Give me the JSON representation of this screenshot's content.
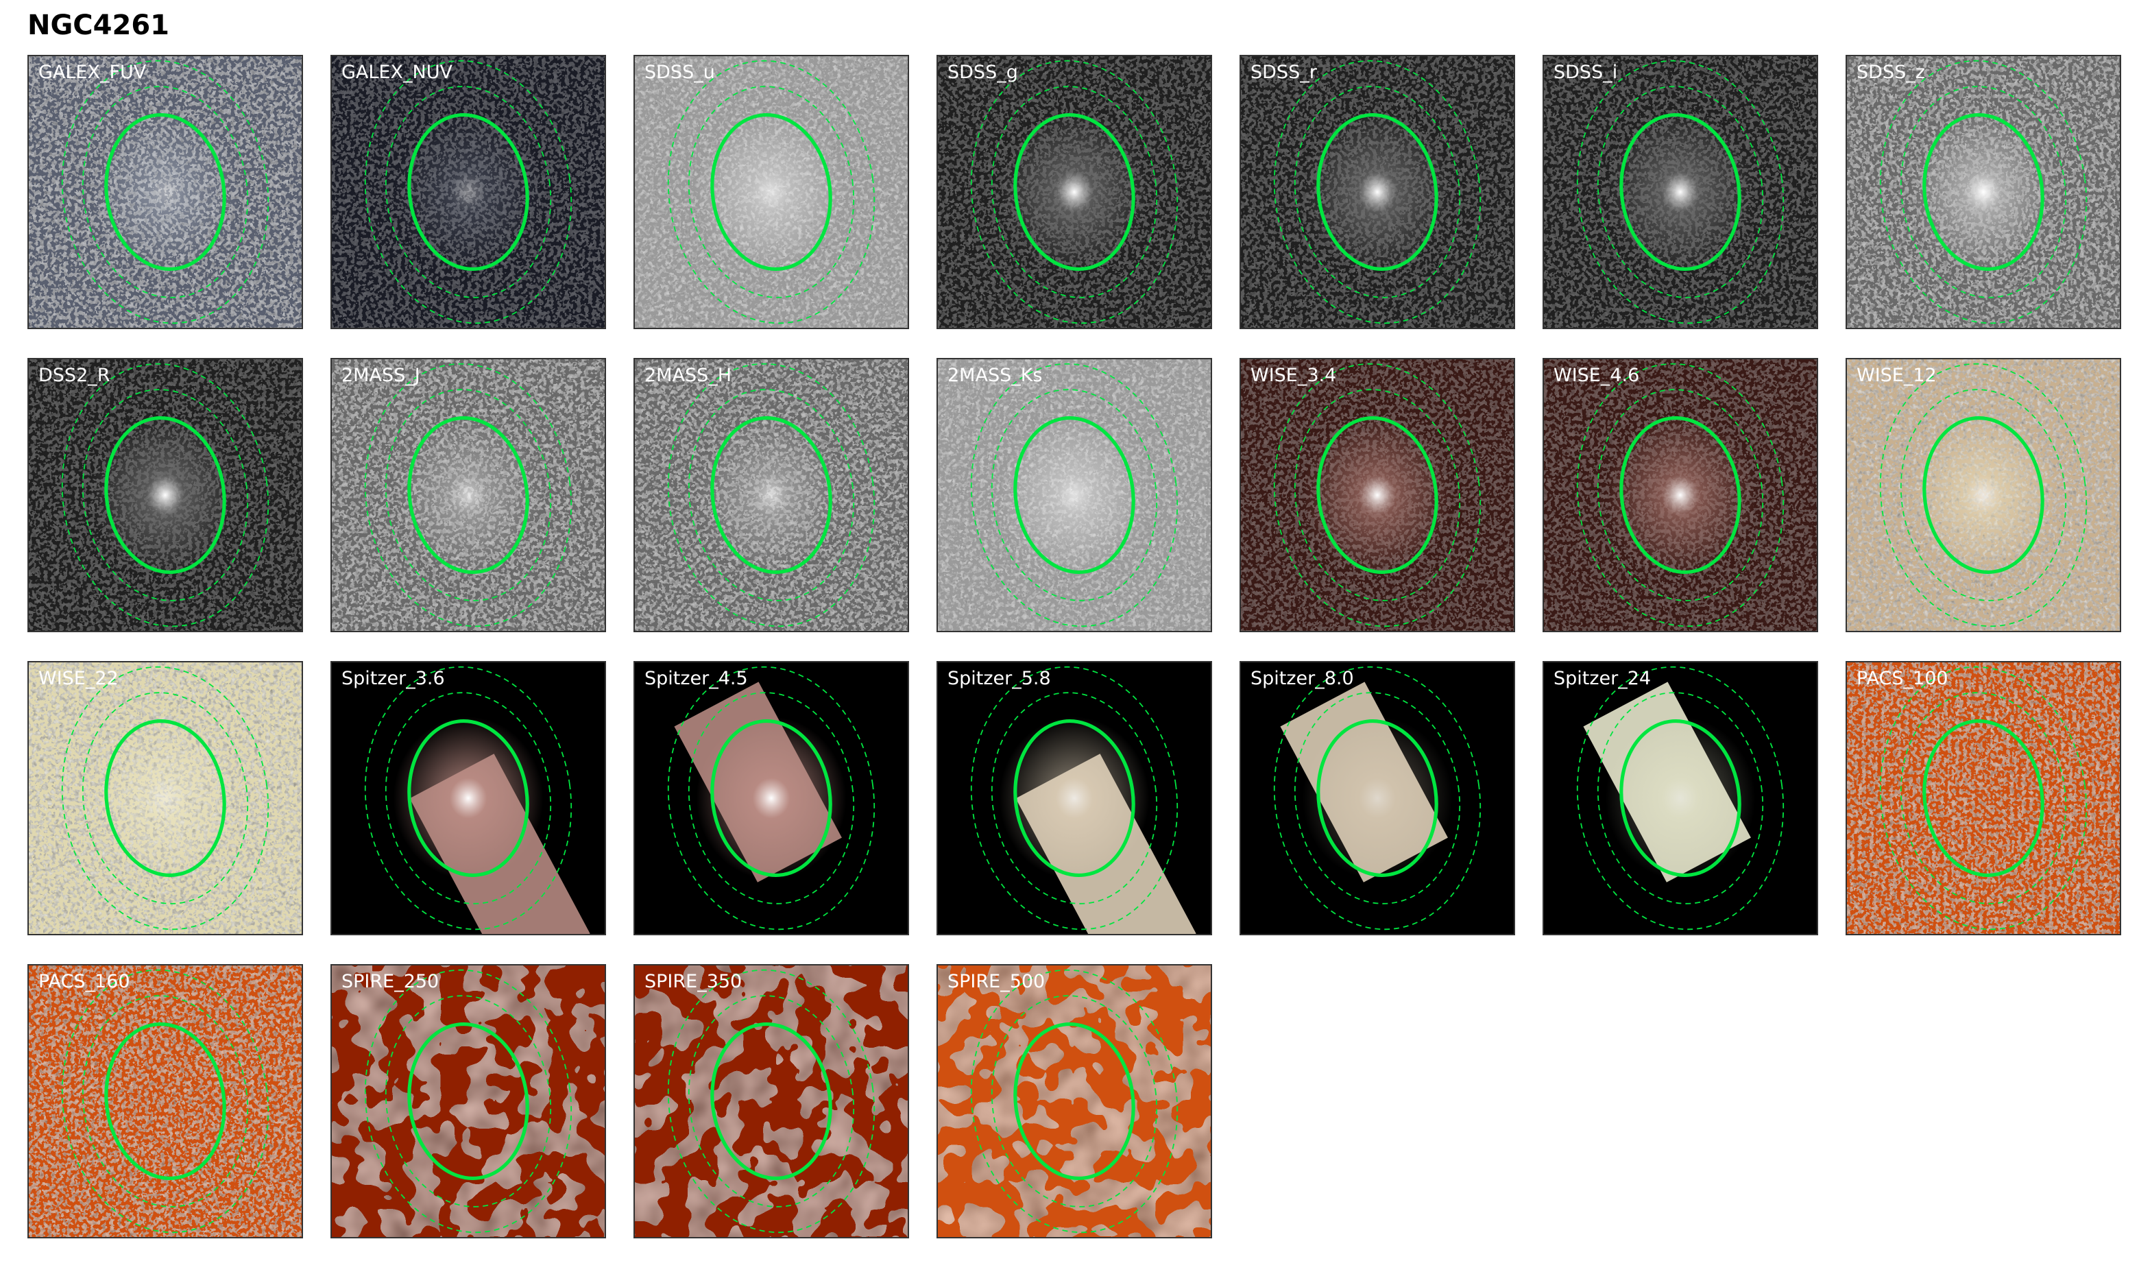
{
  "title": "NGC4261",
  "aperture_color": "#00e640",
  "panels": [
    {
      "label": "GALEX_FUV",
      "cmap": "bone",
      "noise": "high",
      "galaxy": "faint"
    },
    {
      "label": "GALEX_NUV",
      "cmap": "bone-dark",
      "noise": "low",
      "galaxy": "faint"
    },
    {
      "label": "SDSS_u",
      "cmap": "gray-light",
      "noise": "high",
      "galaxy": "medium"
    },
    {
      "label": "SDSS_g",
      "cmap": "gray-dark",
      "noise": "low",
      "galaxy": "bright"
    },
    {
      "label": "SDSS_r",
      "cmap": "gray-dark",
      "noise": "low",
      "galaxy": "bright"
    },
    {
      "label": "SDSS_i",
      "cmap": "gray-dark",
      "noise": "low",
      "galaxy": "bright"
    },
    {
      "label": "SDSS_z",
      "cmap": "gray-mid",
      "noise": "medium",
      "galaxy": "bright"
    },
    {
      "label": "DSS2_R",
      "cmap": "gray-dark",
      "noise": "low",
      "galaxy": "bright"
    },
    {
      "label": "2MASS_J",
      "cmap": "gray-mid",
      "noise": "high",
      "galaxy": "medium"
    },
    {
      "label": "2MASS_H",
      "cmap": "gray-mid",
      "noise": "high",
      "galaxy": "medium"
    },
    {
      "label": "2MASS_Ks",
      "cmap": "gray-light",
      "noise": "high",
      "galaxy": "medium"
    },
    {
      "label": "WISE_3.4",
      "cmap": "pink-dark",
      "noise": "low",
      "galaxy": "bright"
    },
    {
      "label": "WISE_4.6",
      "cmap": "pink-dark",
      "noise": "low",
      "galaxy": "bright"
    },
    {
      "label": "WISE_12",
      "cmap": "beige",
      "noise": "high",
      "galaxy": "medium"
    },
    {
      "label": "WISE_22",
      "cmap": "beige-light",
      "noise": "high",
      "galaxy": "faint"
    },
    {
      "label": "Spitzer_3.6",
      "cmap": "spitzer",
      "noise": "none",
      "galaxy": "bright",
      "coverage": "rotated-strip-low"
    },
    {
      "label": "Spitzer_4.5",
      "cmap": "spitzer",
      "noise": "none",
      "galaxy": "bright",
      "coverage": "rotated-strip-high"
    },
    {
      "label": "Spitzer_5.8",
      "cmap": "spitzer-light",
      "noise": "none",
      "galaxy": "medium",
      "coverage": "rotated-strip-low"
    },
    {
      "label": "Spitzer_8.0",
      "cmap": "spitzer-light",
      "noise": "none",
      "galaxy": "faint",
      "coverage": "rotated-strip-high"
    },
    {
      "label": "Spitzer_24",
      "cmap": "spitzer-cream",
      "noise": "none",
      "galaxy": "faint",
      "coverage": "rotated-strip-high"
    },
    {
      "label": "PACS_100",
      "cmap": "heat",
      "noise": "high",
      "galaxy": "none"
    },
    {
      "label": "PACS_160",
      "cmap": "heat",
      "noise": "high",
      "galaxy": "none"
    },
    {
      "label": "SPIRE_250",
      "cmap": "heat-dark",
      "noise": "blobby",
      "galaxy": "none"
    },
    {
      "label": "SPIRE_350",
      "cmap": "heat-dark",
      "noise": "blobby",
      "galaxy": "none"
    },
    {
      "label": "SPIRE_500",
      "cmap": "heat",
      "noise": "blobby",
      "galaxy": "none"
    }
  ]
}
